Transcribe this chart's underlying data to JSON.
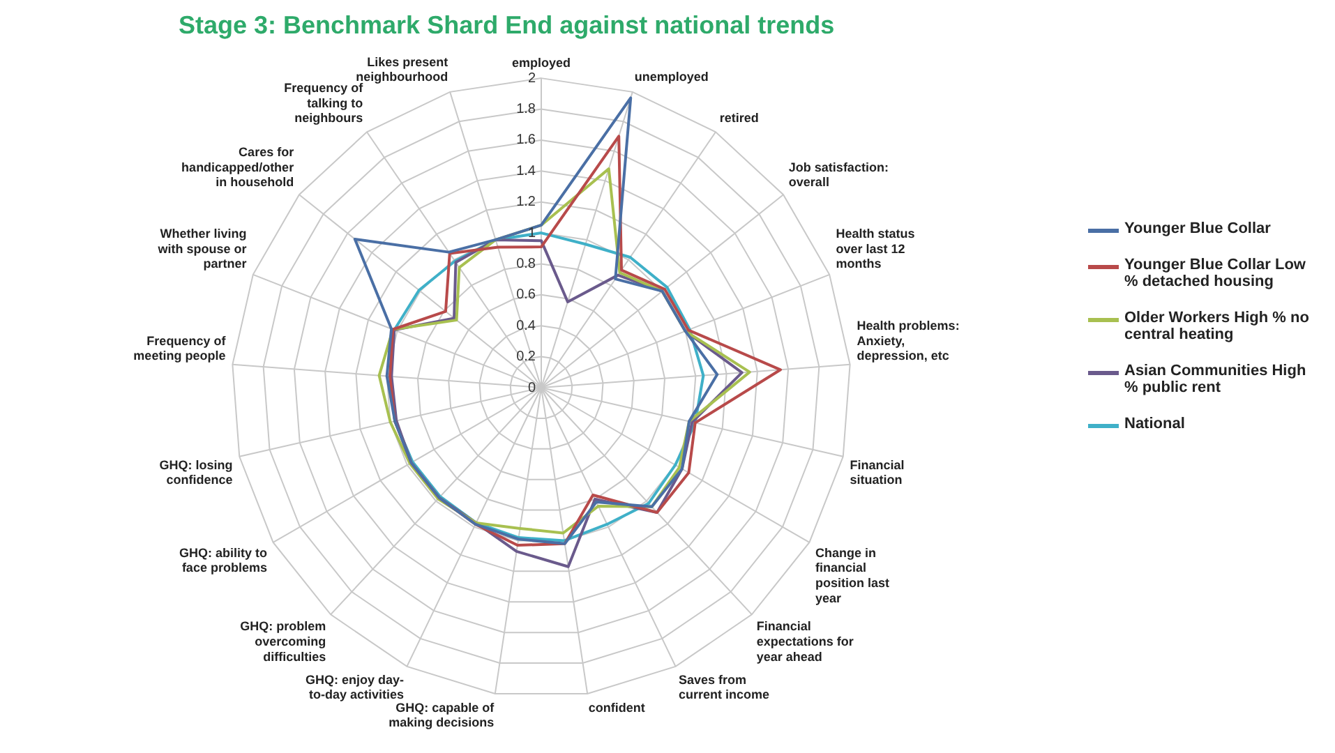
{
  "chart_data": {
    "type": "radar",
    "title": "Stage 3: Benchmark Shard End against national trends",
    "categories": [
      "employed",
      "unemployed",
      "retired",
      "Job satisfaction: overall",
      "Health status over last 12 months",
      "Health problems: Anxiety, depression, etc",
      "Financial situation",
      "Change in financial position last year",
      "Financial expectations for year ahead",
      "Saves from current income",
      "confident",
      "GHQ: capable of making decisions",
      "GHQ: enjoy day-to-day activities",
      "GHQ: problem overcoming difficulties",
      "GHQ: ability to face problems",
      "GHQ: losing confidence",
      "Frequency of meeting people",
      "Whether living with spouse or partner",
      "Cares for handicapped/other in household",
      "Frequency of talking to neighbours",
      "Likes present neighbourhood"
    ],
    "series": [
      {
        "name": "Younger Blue Collar",
        "color": "#4a6fa5",
        "values": [
          1.05,
          1.96,
          0.85,
          1.0,
          1.0,
          1.14,
          0.98,
          1.05,
          1.05,
          0.82,
          1.02,
          0.99,
          0.98,
          0.97,
          0.97,
          0.97,
          1.0,
          1.04,
          1.54,
          1.06,
          1.0
        ]
      },
      {
        "name": "Younger Blue Collar Low % detached housing",
        "color": "#b84a4a",
        "values": [
          0.91,
          1.7,
          0.92,
          1.02,
          1.02,
          1.55,
          1.02,
          1.1,
          1.1,
          0.77,
          1.02,
          1.03,
          0.98,
          0.97,
          0.97,
          0.97,
          0.98,
          1.03,
          0.79,
          1.05,
          0.95
        ]
      },
      {
        "name": "Older Workers High % no central heating",
        "color": "#a8c050",
        "values": [
          1.05,
          1.48,
          0.9,
          1.0,
          1.0,
          1.35,
          0.98,
          1.03,
          1.05,
          0.85,
          0.95,
          0.92,
          0.97,
          0.98,
          0.98,
          1.0,
          1.05,
          1.03,
          0.7,
          0.94,
          1.0
        ]
      },
      {
        "name": "Asian Communities High % public rent",
        "color": "#6a5a8c",
        "values": [
          0.95,
          0.58,
          0.88,
          1.0,
          1.0,
          1.3,
          1.0,
          1.05,
          1.1,
          0.8,
          1.17,
          1.07,
          0.97,
          0.97,
          0.97,
          0.96,
          0.97,
          1.02,
          0.72,
          0.98,
          1.0
        ]
      },
      {
        "name": "National",
        "color": "#3fb0c8",
        "values": [
          1.0,
          0.97,
          1.02,
          1.04,
          1.03,
          1.05,
          1.02,
          1.0,
          1.02,
          0.98,
          1.0,
          0.98,
          0.97,
          0.96,
          0.96,
          0.97,
          0.98,
          1.02,
          1.01,
          0.99,
          1.0
        ]
      }
    ],
    "ylim": [
      0,
      2
    ],
    "yticks": [
      0,
      0.2,
      0.4,
      0.6,
      0.8,
      1,
      1.2,
      1.4,
      1.6,
      1.8,
      2
    ],
    "grid": true,
    "legend": "right",
    "marker": "none"
  }
}
